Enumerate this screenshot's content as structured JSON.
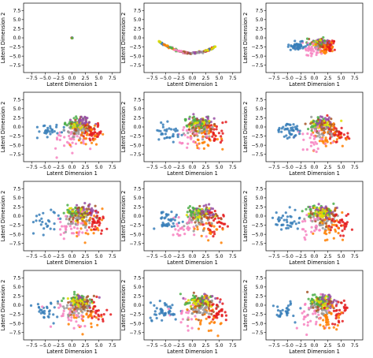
{
  "colors": [
    "#377eb8",
    "#ff7f00",
    "#4daf4a",
    "#f781bf",
    "#a65628",
    "#984ea3",
    "#999999",
    "#e41a1c",
    "#dede00"
  ],
  "chart_data": [
    {
      "type": "scatter",
      "xlabel": "Latent Dimension 1",
      "ylabel": "Latent Dimension 2",
      "xlim": [
        -9,
        9
      ],
      "ylim": [
        -9.5,
        9.5
      ],
      "xticks": [
        "-7.5",
        "-5.0",
        "-2.5",
        "0.0",
        "2.5",
        "5.0",
        "7.5"
      ],
      "yticks": [
        "-7.5",
        "-5.0",
        "-2.5",
        "0.0",
        "2.5",
        "5.0",
        "7.5"
      ],
      "stage": 0
    },
    {
      "type": "scatter",
      "xlabel": "Latent Dimension 1",
      "ylabel": "Latent Dimension 2",
      "xlim": [
        -9,
        9
      ],
      "ylim": [
        -9.5,
        9.5
      ],
      "xticks": [
        "-7.5",
        "-5.0",
        "-2.5",
        "0.0",
        "2.5",
        "5.0",
        "7.5"
      ],
      "yticks": [
        "-7.5",
        "-5.0",
        "-2.5",
        "0.0",
        "2.5",
        "5.0",
        "7.5"
      ],
      "stage": 1
    },
    {
      "type": "scatter",
      "xlabel": "Latent Dimension 1",
      "ylabel": "Latent Dimension 2",
      "xlim": [
        -9,
        9
      ],
      "ylim": [
        -9.5,
        9.5
      ],
      "xticks": [
        "-7.5",
        "-5.0",
        "-2.5",
        "0.0",
        "2.5",
        "5.0",
        "7.5"
      ],
      "yticks": [
        "-7.5",
        "-5.0",
        "-2.5",
        "0.0",
        "2.5",
        "5.0",
        "7.5"
      ],
      "stage": 2
    },
    {
      "type": "scatter",
      "xlabel": "Latent Dimension 1",
      "ylabel": "Latent Dimension 2",
      "xlim": [
        -9,
        9
      ],
      "ylim": [
        -9.5,
        9.5
      ],
      "xticks": [
        "-7.5",
        "-5.0",
        "-2.5",
        "0.0",
        "2.5",
        "5.0",
        "7.5"
      ],
      "yticks": [
        "-7.5",
        "-5.0",
        "-2.5",
        "0.0",
        "2.5",
        "5.0",
        "7.5"
      ],
      "stage": 3
    },
    {
      "type": "scatter",
      "xlabel": "Latent Dimension 1",
      "ylabel": "Latent Dimension 2",
      "xlim": [
        -9,
        9
      ],
      "ylim": [
        -9.5,
        9.5
      ],
      "xticks": [
        "-7.5",
        "-5.0",
        "-2.5",
        "0.0",
        "2.5",
        "5.0",
        "7.5"
      ],
      "yticks": [
        "-7.5",
        "-5.0",
        "-2.5",
        "0.0",
        "2.5",
        "5.0",
        "7.5"
      ],
      "stage": 4
    },
    {
      "type": "scatter",
      "xlabel": "Latent Dimension 1",
      "ylabel": "Latent Dimension 2",
      "xlim": [
        -9,
        9
      ],
      "ylim": [
        -9.5,
        9.5
      ],
      "xticks": [
        "-7.5",
        "-5.0",
        "-2.5",
        "0.0",
        "2.5",
        "5.0",
        "7.5"
      ],
      "yticks": [
        "-7.5",
        "-5.0",
        "-2.5",
        "0.0",
        "2.5",
        "5.0",
        "7.5"
      ],
      "stage": 5
    },
    {
      "type": "scatter",
      "xlabel": "Latent Dimension 1",
      "ylabel": "Latent Dimension 2",
      "xlim": [
        -9,
        9
      ],
      "ylim": [
        -9.5,
        9.5
      ],
      "xticks": [
        "-7.5",
        "-5.0",
        "-2.5",
        "0.0",
        "2.5",
        "5.0",
        "7.5"
      ],
      "yticks": [
        "-7.5",
        "-5.0",
        "-2.5",
        "0.0",
        "2.5",
        "5.0",
        "7.5"
      ],
      "stage": 6
    },
    {
      "type": "scatter",
      "xlabel": "Latent Dimension 1",
      "ylabel": "Latent Dimension 2",
      "xlim": [
        -9,
        9
      ],
      "ylim": [
        -9.5,
        9.5
      ],
      "xticks": [
        "-7.5",
        "-5.0",
        "-2.5",
        "0.0",
        "2.5",
        "5.0",
        "7.5"
      ],
      "yticks": [
        "-7.5",
        "-5.0",
        "-2.5",
        "0.0",
        "2.5",
        "5.0",
        "7.5"
      ],
      "stage": 7
    },
    {
      "type": "scatter",
      "xlabel": "Latent Dimension 1",
      "ylabel": "Latent Dimension 2",
      "xlim": [
        -9,
        9
      ],
      "ylim": [
        -9.5,
        9.5
      ],
      "xticks": [
        "-7.5",
        "-5.0",
        "-2.5",
        "0.0",
        "2.5",
        "5.0",
        "7.5"
      ],
      "yticks": [
        "-7.5",
        "-5.0",
        "-2.5",
        "0.0",
        "2.5",
        "5.0",
        "7.5"
      ],
      "stage": 8
    },
    {
      "type": "scatter",
      "xlabel": "Latent Dimension 1",
      "ylabel": "Latent Dimension 2",
      "xlim": [
        -9,
        9
      ],
      "ylim": [
        -9.5,
        9.5
      ],
      "xticks": [
        "-7.5",
        "-5.0",
        "-2.5",
        "0.0",
        "2.5",
        "5.0",
        "7.5"
      ],
      "yticks": [
        "-7.5",
        "-5.0",
        "-2.5",
        "0.0",
        "2.5",
        "5.0",
        "7.5"
      ],
      "stage": 9
    },
    {
      "type": "scatter",
      "xlabel": "Latent Dimension 1",
      "ylabel": "Latent Dimension 2",
      "xlim": [
        -9,
        9
      ],
      "ylim": [
        -9.5,
        9.5
      ],
      "xticks": [
        "-7.5",
        "-5.0",
        "-2.5",
        "0.0",
        "2.5",
        "5.0",
        "7.5"
      ],
      "yticks": [
        "-7.5",
        "-5.0",
        "-2.5",
        "0.0",
        "2.5",
        "5.0",
        "7.5"
      ],
      "stage": 10
    },
    {
      "type": "scatter",
      "xlabel": "Latent Dimension 1",
      "ylabel": "Latent Dimension 2",
      "xlim": [
        -9,
        9
      ],
      "ylim": [
        -9.5,
        9.5
      ],
      "xticks": [
        "-7.5",
        "-5.0",
        "-2.5",
        "0.0",
        "2.5",
        "5.0",
        "7.5"
      ],
      "yticks": [
        "-7.5",
        "-5.0",
        "-2.5",
        "0.0",
        "2.5",
        "5.0",
        "7.5"
      ],
      "stage": 11
    }
  ]
}
